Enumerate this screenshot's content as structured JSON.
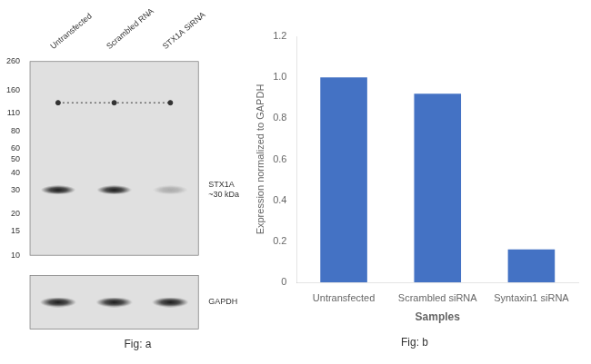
{
  "chart_data": [
    {
      "type": "blot",
      "categories": [
        "Untransfected",
        "Scrambled RNA",
        "STX1A SiRNA"
      ],
      "log": "y",
      "ylim": [
        10,
        260
      ],
      "yticks": [
        260,
        160,
        110,
        80,
        60,
        50,
        40,
        30,
        20,
        15,
        10
      ],
      "grid": false,
      "series": [
        {
          "name": "STX1A\n~30 kDa",
          "values": [
            30,
            30,
            30
          ],
          "colors": [
            "#1a1a1a",
            "#1a1a1a",
            "#aaaaaa"
          ],
          "marker": "band"
        },
        {
          "values": [
            130,
            130,
            130
          ],
          "color": "#333333",
          "marker": "circle",
          "line_style": "dotted"
        }
      ]
    },
    {
      "type": "blot",
      "title": "Fig: a",
      "categories": [
        null,
        null,
        null
      ],
      "tick_labels": "y",
      "grid": false,
      "series": [
        {
          "name": "GAPDH",
          "colors": [
            "#1a1a1a",
            "#1a1a1a",
            "#1a1a1a"
          ],
          "marker": "band"
        }
      ]
    },
    {
      "type": "bar",
      "title": "Fig: b",
      "categories": [
        "Untransfected",
        "Scrambled siRNA",
        "Syntaxin1 siRNA"
      ],
      "values": [
        1.0,
        0.92,
        0.16
      ],
      "color": "#4472c4",
      "xlabel": "Samples",
      "ylabel": "Expression normalized to GAPDH",
      "ylim": [
        0,
        1.2
      ],
      "yticks": [
        0,
        0.2,
        0.4,
        0.6,
        0.8,
        {
          "value": 1.0,
          "label": "1.0"
        },
        1.2
      ],
      "grid": false
    }
  ]
}
